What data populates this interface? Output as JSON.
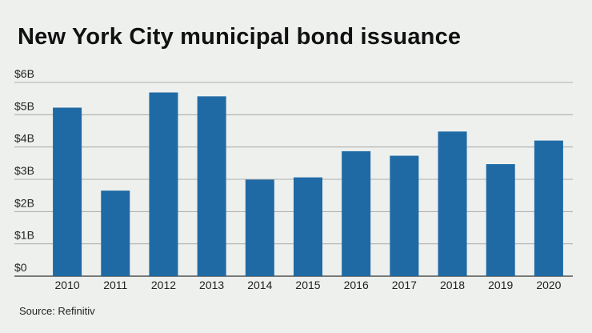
{
  "title": "New York City municipal bond issuance",
  "source": "Source: Refinitiv",
  "chart_data": {
    "type": "bar",
    "categories": [
      "2010",
      "2011",
      "2012",
      "2013",
      "2014",
      "2015",
      "2016",
      "2017",
      "2018",
      "2019",
      "2020"
    ],
    "values": [
      5.22,
      2.65,
      5.69,
      5.57,
      2.99,
      3.06,
      3.87,
      3.73,
      4.48,
      3.47,
      4.2
    ],
    "ylim": [
      0,
      6
    ],
    "yticks": [
      0,
      1,
      2,
      3,
      4,
      5,
      6
    ],
    "ytick_labels": [
      "$0",
      "$1B",
      "$2B",
      "$3B",
      "$4B",
      "$5B",
      "$6B"
    ],
    "grid": true,
    "colors": {
      "bar": "#1f6aa5",
      "grid": "#9a9a9a",
      "axis": "#333333"
    }
  }
}
